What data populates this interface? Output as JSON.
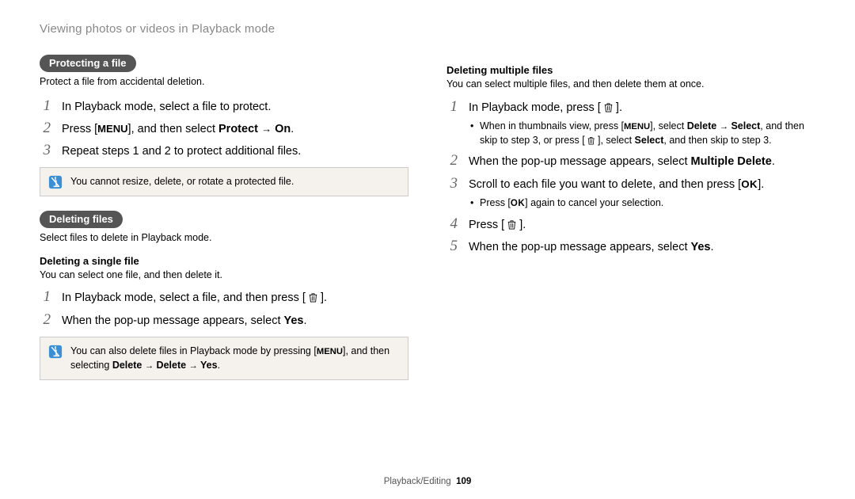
{
  "header": "Viewing photos or videos in Playback mode",
  "left": {
    "pill1": "Protecting a file",
    "intro1": "Protect a file from accidental deletion.",
    "protect_steps": [
      "In Playback mode, select a file to protect.",
      "Press [__MENU__], and then select __B__Protect__/B__ → __B__On__/B__.",
      "Repeat steps 1 and 2 to protect additional files."
    ],
    "note1": "You cannot resize, delete, or rotate a protected file.",
    "pill2": "Deleting files",
    "intro2": "Select files to delete in Playback mode.",
    "sub1_title": "Deleting a single file",
    "sub1_intro": "You can select one file, and then delete it.",
    "single_steps": [
      "In Playback mode, select a file, and then press [ __TRASH__ ].",
      "When the pop-up message appears, select __B__Yes__/B__."
    ],
    "note2_pre": "You can also delete files in Playback mode by pressing [",
    "note2_post": "], and then selecting ",
    "note2_bold": "Delete → Delete → Yes"
  },
  "right": {
    "sub_title": "Deleting multiple files",
    "sub_intro": "You can select multiple files, and then delete them at once.",
    "steps": [
      {
        "t": "In Playback mode, press [ __TRASH__ ].",
        "bullets": [
          "When in thumbnails view, press [__MENU__], select __B__Delete__/B__ → __B__Select__/B__, and then skip to step 3, or press [ __TRASH__ ], select __B__Select__/B__, and then skip to step 3."
        ]
      },
      {
        "t": "When the pop-up message appears, select __B__Multiple Delete__/B__."
      },
      {
        "t": "Scroll to each file you want to delete, and then press [__OK__].",
        "bullets": [
          "Press [__OK__] again to cancel your selection."
        ]
      },
      {
        "t": "Press [ __TRASH__ ]."
      },
      {
        "t": "When the pop-up message appears, select __B__Yes__/B__."
      }
    ]
  },
  "footer": {
    "section": "Playback/Editing",
    "page": "109"
  },
  "colors": {
    "note_icon_fill": "#3b8fd4",
    "pill_bg": "#555555"
  }
}
